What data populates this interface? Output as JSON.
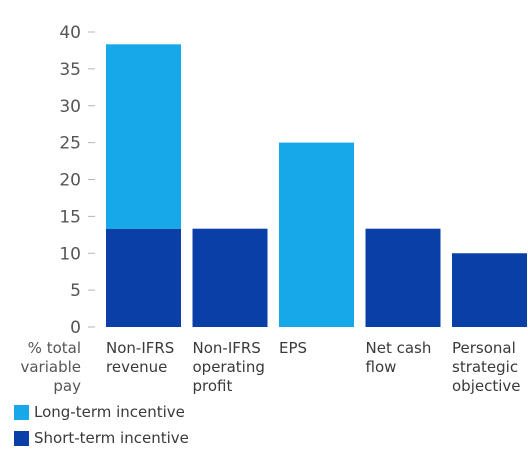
{
  "chart_data": {
    "type": "bar",
    "stacked": true,
    "categories": [
      [
        "Non-IFRS",
        "revenue"
      ],
      [
        "Non-IFRS",
        "operating",
        "profit"
      ],
      [
        "EPS"
      ],
      [
        "Net cash",
        "flow"
      ],
      [
        "Personal",
        "strategic",
        "objective"
      ]
    ],
    "series": [
      {
        "name": "Short-term incentive",
        "color": "#0b3fa8",
        "values": [
          13.33,
          13.33,
          0,
          13.33,
          10
        ]
      },
      {
        "name": "Long-term incentive",
        "color": "#16a8e8",
        "values": [
          25,
          0,
          25,
          0,
          0
        ]
      }
    ],
    "ylabel": [
      "% total",
      "variable",
      "pay"
    ],
    "ylim": [
      0,
      40
    ],
    "yticks": [
      0,
      5,
      10,
      15,
      20,
      25,
      30,
      35,
      40
    ],
    "grid": false,
    "legend_position": "bottom-left"
  },
  "legend": [
    {
      "label": "Long-term incentive",
      "color": "#16a8e8"
    },
    {
      "label": "Short-term incentive",
      "color": "#0b3fa8"
    }
  ]
}
